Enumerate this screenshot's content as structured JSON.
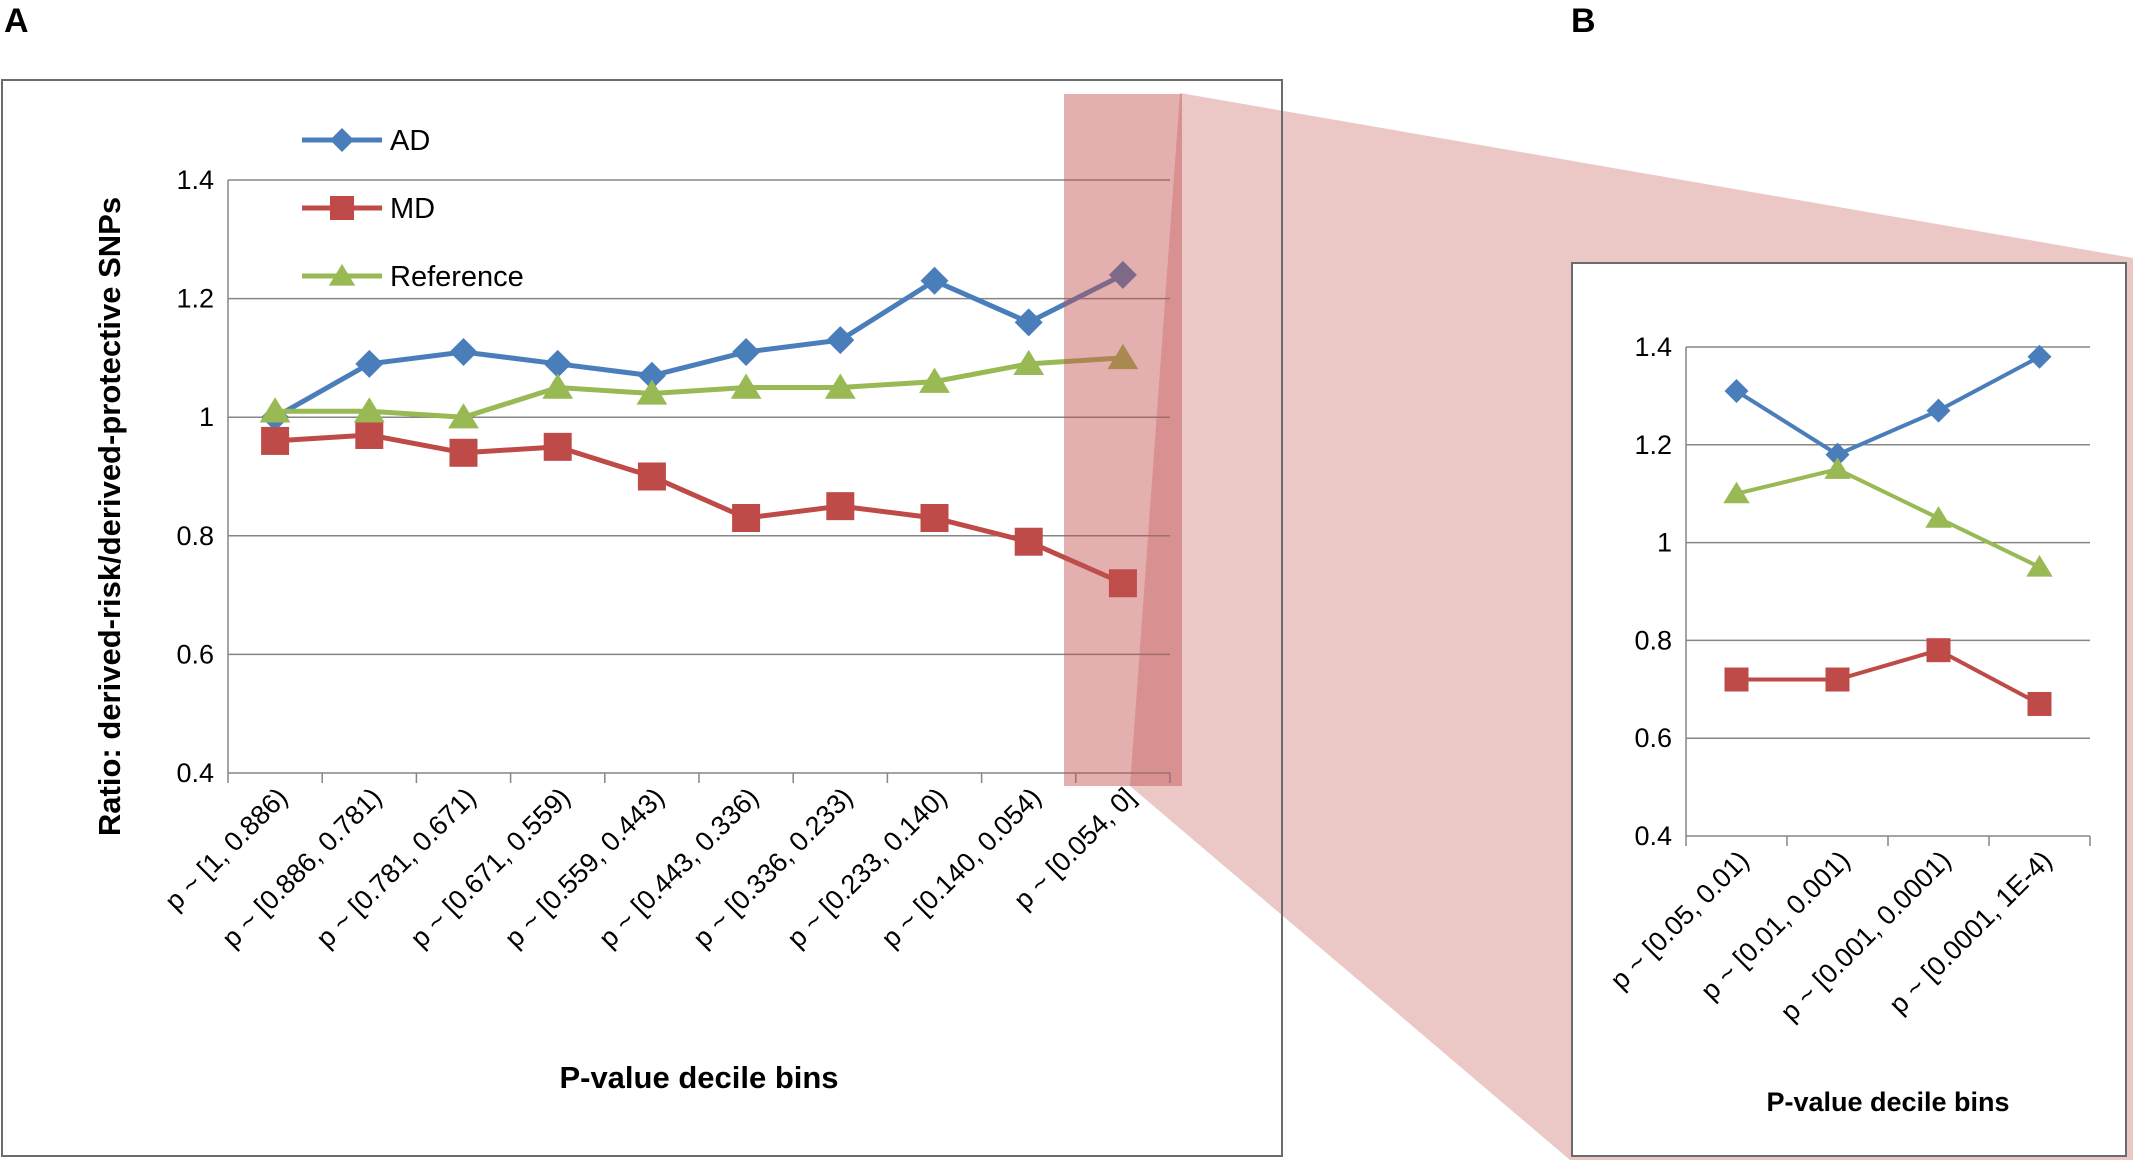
{
  "panel_labels": {
    "a": "A",
    "b": "B"
  },
  "colors": {
    "AD": "#4a7ebb",
    "MD": "#be4b48",
    "Reference": "#98b954",
    "highlight": "#c0504d",
    "grid": "#868686",
    "frame": "#6b6b6b"
  },
  "chart_data": [
    {
      "type": "line",
      "panel": "A",
      "xlabel": "P-value decile bins",
      "ylabel": "Ratio: derived-risk/derived-protective SNPs",
      "ylim": [
        0.4,
        1.4
      ],
      "yticks": [
        "0.4",
        "0.6",
        "0.8",
        "1",
        "1.2",
        "1.4"
      ],
      "grid": true,
      "legend": "top-left",
      "categories": [
        "p ~ [1, 0.886)",
        "p ~ [0.886, 0.781)",
        "p ~ [0.781, 0.671)",
        "p ~ [0.671, 0.559)",
        "p ~ [0.559, 0.443)",
        "p ~ [0.443, 0.336)",
        "p ~ [0.336, 0.233)",
        "p ~ [0.233, 0.140)",
        "p ~ [0.140, 0.054)",
        "p ~ [0.054, 0]"
      ],
      "series": [
        {
          "name": "AD",
          "marker": "diamond",
          "values": [
            1.0,
            1.09,
            1.11,
            1.09,
            1.07,
            1.11,
            1.13,
            1.23,
            1.16,
            1.24
          ]
        },
        {
          "name": "MD",
          "marker": "square",
          "values": [
            0.96,
            0.97,
            0.94,
            0.95,
            0.9,
            0.83,
            0.85,
            0.83,
            0.79,
            0.72
          ]
        },
        {
          "name": "Reference",
          "marker": "triangle",
          "values": [
            1.01,
            1.01,
            1.0,
            1.05,
            1.04,
            1.05,
            1.05,
            1.06,
            1.09,
            1.1
          ]
        }
      ]
    },
    {
      "type": "line",
      "panel": "B",
      "xlabel": "P-value decile bins",
      "ylabel": "",
      "ylim": [
        0.4,
        1.4
      ],
      "yticks": [
        "0.4",
        "0.6",
        "0.8",
        "1",
        "1.2",
        "1.4"
      ],
      "grid": true,
      "legend": "none",
      "categories": [
        "p ~ [0.05, 0.01)",
        "p ~ [0.01, 0.001)",
        "p ~ [0.001, 0.0001)",
        "p ~ [0.0001, 1E-4)"
      ],
      "series": [
        {
          "name": "AD",
          "marker": "diamond",
          "values": [
            1.31,
            1.18,
            1.27,
            1.38
          ]
        },
        {
          "name": "MD",
          "marker": "square",
          "values": [
            0.72,
            0.72,
            0.78,
            0.67
          ]
        },
        {
          "name": "Reference",
          "marker": "triangle",
          "values": [
            1.1,
            1.15,
            1.05,
            0.95
          ]
        }
      ]
    }
  ]
}
